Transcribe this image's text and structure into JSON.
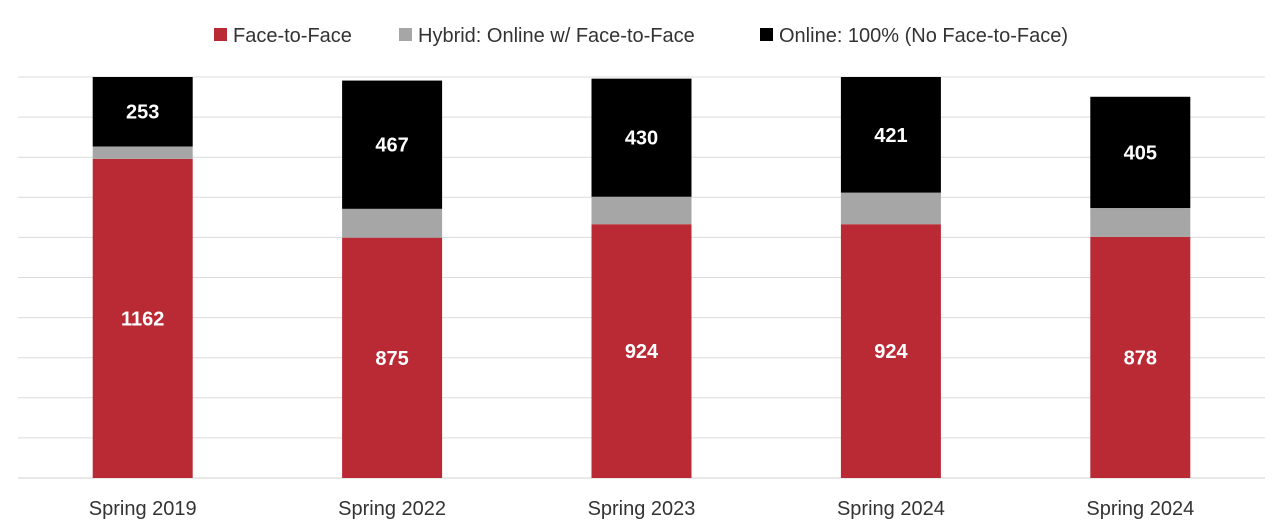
{
  "chart_data": {
    "type": "bar",
    "stacked": true,
    "categories": [
      "Spring 2019",
      "Spring 2022",
      "Spring 2023",
      "Spring 2024",
      "Spring 2024"
    ],
    "series": [
      {
        "name": "Face-to-Face",
        "color": "#b92a35",
        "values": [
          1162,
          875,
          924,
          924,
          878
        ],
        "labels": [
          "1162",
          "875",
          "924",
          "924",
          "878"
        ]
      },
      {
        "name": "Hybrid: Online w/ Face-to-Face",
        "color": "#a6a6a6",
        "values": [
          45,
          105,
          100,
          115,
          105
        ],
        "labels": [
          "",
          "",
          "",
          "",
          ""
        ]
      },
      {
        "name": "Online: 100% (No Face-to-Face)",
        "color": "#000000",
        "values": [
          253,
          467,
          430,
          421,
          405
        ],
        "labels": [
          "253",
          "467",
          "430",
          "421",
          "405"
        ]
      }
    ],
    "ylim": [
      0,
      1460
    ],
    "grid": true,
    "legend_position": "top"
  }
}
